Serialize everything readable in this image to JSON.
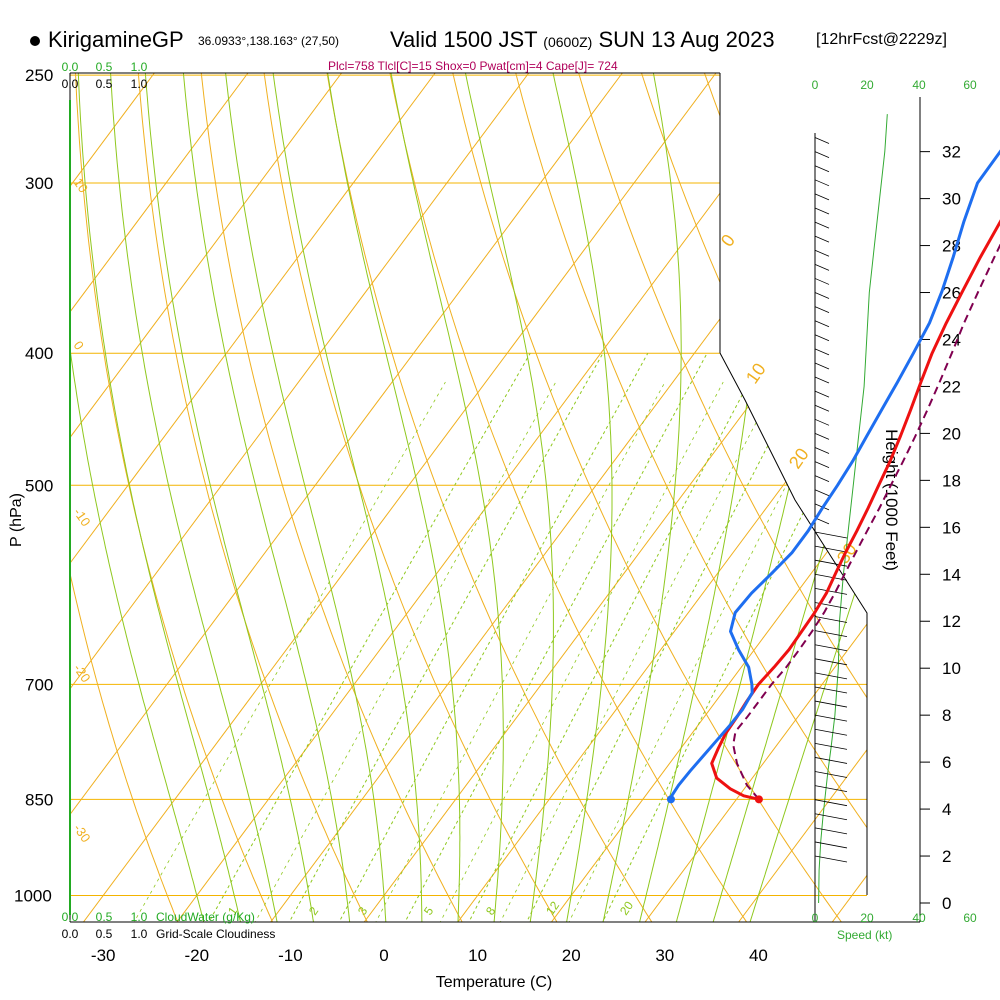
{
  "header": {
    "site": "KirigamineGP",
    "location": "36.0933°,138.163° (27,50)",
    "valid": "Valid 1500 JST",
    "valid_utc": "(0600Z)",
    "valid_date": "SUN 13 Aug 2023",
    "forecast": "[12hrFcst@2229z]",
    "indices": "Plcl=758 Tlcl[C]=15 Shox=0 Pwat[cm]=4 Cape[J]= 724"
  },
  "colors": {
    "isobar": "#f4b400",
    "isotherm": "#f0b020",
    "dry_adiabat": "#f0b020",
    "moist_adiabat": "#8fc81e",
    "mixing_ratio": "#8fc81e",
    "temperature": "#ee1111",
    "dewpoint": "#1e6ef0",
    "parcel": "#800050",
    "cloud_scale": "#22aa22",
    "wind_speed": "#33aa33",
    "indices": "#b0005a"
  },
  "chart_data": {
    "type": "line",
    "subtype": "skew-T log-P sounding",
    "xlabel": "Temperature (C)",
    "ylabel": "P (hPa)",
    "y2label": "Height (1000 Feet)",
    "x_ticks": [
      -30,
      -20,
      -10,
      0,
      10,
      20,
      30,
      40
    ],
    "p_ticks": [
      250,
      300,
      400,
      500,
      700,
      850,
      1000
    ],
    "height_ticks": [
      0,
      2,
      4,
      6,
      8,
      10,
      12,
      14,
      16,
      18,
      20,
      22,
      24,
      26,
      28,
      30,
      32
    ],
    "isotherm_labels": [
      {
        "t": 10,
        "text": "10"
      },
      {
        "t": 0,
        "text": "0"
      },
      {
        "t": -10,
        "text": "-10"
      },
      {
        "t": -20,
        "text": "-20"
      },
      {
        "t": -30,
        "text": "-30"
      }
    ],
    "moist_labels": [
      "0",
      "10",
      "20",
      "30"
    ],
    "mixing_ratio_labels": [
      {
        "w": 1,
        "text": "1"
      },
      {
        "w": 2,
        "text": "2"
      },
      {
        "w": 3,
        "text": "3"
      },
      {
        "w": 5,
        "text": "5"
      },
      {
        "w": 8,
        "text": "8"
      },
      {
        "w": 12,
        "text": "12"
      },
      {
        "w": 20,
        "text": "20"
      }
    ],
    "series": [
      {
        "name": "temperature",
        "points": [
          [
            850,
            32.4
          ],
          [
            845,
            30.5
          ],
          [
            835,
            28.5
          ],
          [
            820,
            26.2
          ],
          [
            800,
            24.5
          ],
          [
            780,
            24.0
          ],
          [
            760,
            23.6
          ],
          [
            740,
            23.5
          ],
          [
            720,
            23.3
          ],
          [
            700,
            23.2
          ],
          [
            680,
            23.5
          ],
          [
            660,
            23.7
          ],
          [
            640,
            23.6
          ],
          [
            620,
            23.5
          ],
          [
            600,
            23.2
          ],
          [
            580,
            22.6
          ],
          [
            560,
            22.0
          ],
          [
            540,
            21.5
          ],
          [
            520,
            20.9
          ],
          [
            500,
            20.2
          ],
          [
            480,
            19.5
          ],
          [
            460,
            18.6
          ],
          [
            440,
            17.6
          ],
          [
            420,
            16.5
          ],
          [
            400,
            15.4
          ],
          [
            380,
            14.5
          ],
          [
            360,
            13.7
          ],
          [
            340,
            12.9
          ],
          [
            320,
            12.2
          ],
          [
            300,
            11.5
          ],
          [
            280,
            10.9
          ],
          [
            265,
            10.5
          ]
        ]
      },
      {
        "name": "dewpoint",
        "points": [
          [
            850,
            23.0
          ],
          [
            845,
            22.8
          ],
          [
            830,
            22.7
          ],
          [
            810,
            22.8
          ],
          [
            790,
            23.0
          ],
          [
            770,
            23.2
          ],
          [
            750,
            23.4
          ],
          [
            730,
            23.5
          ],
          [
            710,
            23.2
          ],
          [
            700,
            22.5
          ],
          [
            680,
            20.8
          ],
          [
            660,
            18.3
          ],
          [
            640,
            16.0
          ],
          [
            620,
            15.0
          ],
          [
            600,
            15.2
          ],
          [
            580,
            15.8
          ],
          [
            560,
            16.3
          ],
          [
            540,
            16.3
          ],
          [
            520,
            16.0
          ],
          [
            500,
            15.8
          ],
          [
            480,
            15.5
          ],
          [
            460,
            15.0
          ],
          [
            440,
            14.5
          ],
          [
            420,
            14.0
          ],
          [
            400,
            13.4
          ],
          [
            380,
            12.7
          ],
          [
            360,
            11.5
          ],
          [
            340,
            10.0
          ],
          [
            320,
            8.3
          ],
          [
            300,
            6.7
          ],
          [
            280,
            6.6
          ],
          [
            265,
            6.7
          ]
        ]
      },
      {
        "name": "parcel",
        "points": [
          [
            850,
            32.4
          ],
          [
            830,
            30.0
          ],
          [
            800,
            27.2
          ],
          [
            775,
            25.3
          ],
          [
            758,
            24.5
          ],
          [
            740,
            24.6
          ],
          [
            720,
            24.6
          ],
          [
            700,
            24.6
          ],
          [
            680,
            24.8
          ],
          [
            660,
            24.8
          ],
          [
            640,
            24.7
          ],
          [
            620,
            24.5
          ],
          [
            600,
            24.1
          ],
          [
            580,
            23.6
          ],
          [
            560,
            23.1
          ],
          [
            540,
            22.6
          ],
          [
            520,
            22.1
          ],
          [
            500,
            21.5
          ],
          [
            480,
            20.9
          ],
          [
            460,
            20.2
          ],
          [
            440,
            19.4
          ],
          [
            420,
            18.5
          ],
          [
            400,
            17.5
          ],
          [
            380,
            16.4
          ],
          [
            360,
            15.4
          ],
          [
            340,
            14.4
          ],
          [
            320,
            13.4
          ],
          [
            300,
            12.4
          ],
          [
            280,
            11.4
          ],
          [
            265,
            11.0
          ]
        ]
      }
    ],
    "surface_markers": [
      {
        "name": "surface temperature",
        "p": 850,
        "t": 32.4
      },
      {
        "name": "surface dewpoint",
        "p": 850,
        "t": 23.0
      }
    ],
    "cloud_scale_top": {
      "values": [
        "0.0",
        "0.5",
        "1.0"
      ],
      "values2": [
        "0.0",
        "0.5",
        "1.0"
      ]
    },
    "cloud_scale_bottom": {
      "values": [
        "0.0",
        "0.5",
        "1.0"
      ],
      "label": "CloudWater (g/Kg)",
      "values2": [
        "0.0",
        "0.5",
        "1.0"
      ],
      "label2": "Grid-Scale Cloudiness"
    },
    "wind": {
      "speed_label": "Speed (kt)",
      "speed_ticks": [
        0,
        20,
        40,
        60
      ],
      "xlim": [
        0,
        60
      ],
      "profile": [
        [
          0,
          1.4
        ],
        [
          1.4,
          1.6
        ],
        [
          2.6,
          2.2
        ],
        [
          3.6,
          3.0
        ],
        [
          4.6,
          4.0
        ],
        [
          5.6,
          5.0
        ],
        [
          6.6,
          6.2
        ],
        [
          8.0,
          7.7
        ],
        [
          10,
          9.0
        ],
        [
          12,
          9.5
        ],
        [
          14,
          11
        ],
        [
          16,
          13
        ],
        [
          18,
          15
        ],
        [
          20,
          17
        ],
        [
          22,
          19
        ],
        [
          24,
          20
        ],
        [
          26,
          21
        ],
        [
          28,
          23
        ],
        [
          30,
          25
        ],
        [
          32,
          27
        ],
        [
          33.6,
          28
        ]
      ]
    }
  }
}
